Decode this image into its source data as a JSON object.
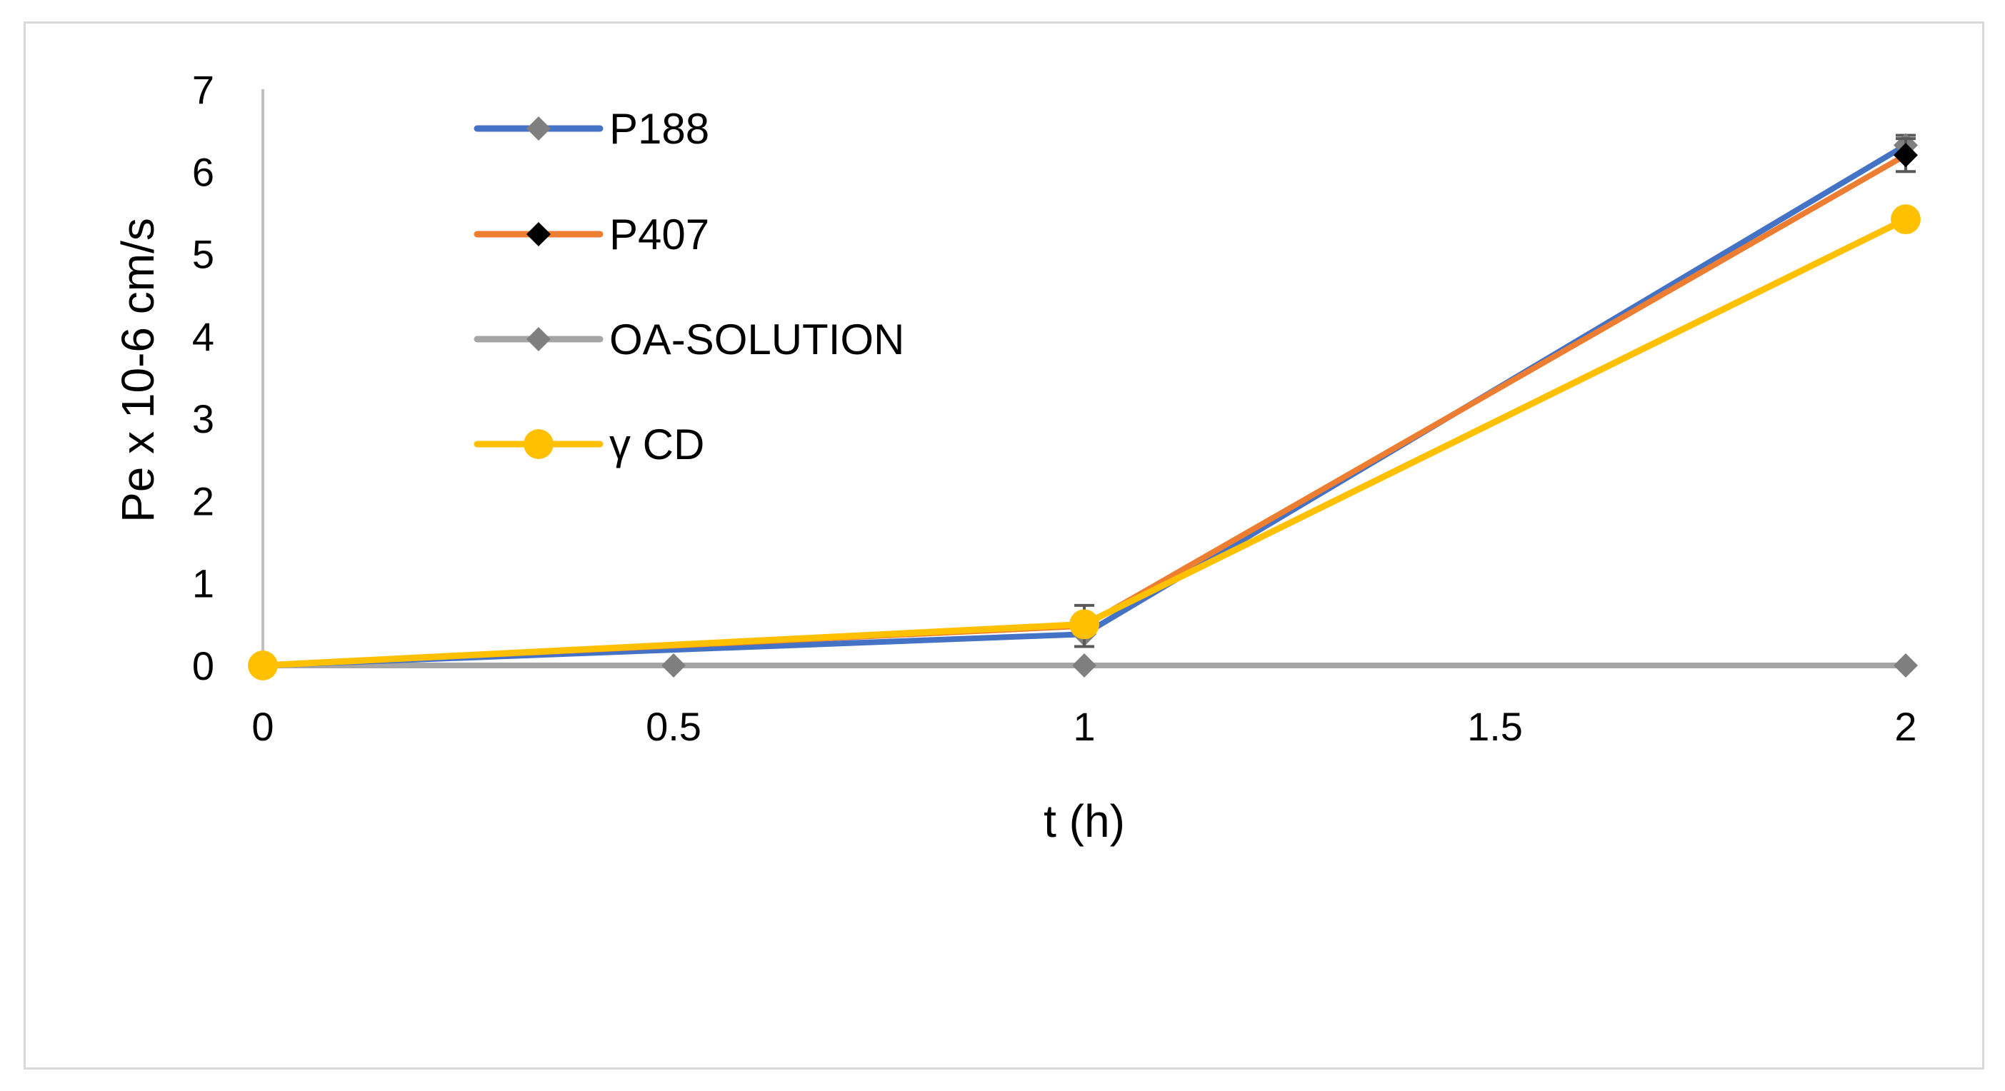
{
  "chart_data": {
    "type": "line",
    "title": "",
    "xlabel": "t (h)",
    "ylabel": "Pe x 10-6 cm/s",
    "xlim": [
      0,
      2
    ],
    "ylim": [
      0,
      7
    ],
    "x_ticks": [
      "0",
      "0.5",
      "1",
      "1.5",
      "2"
    ],
    "y_ticks": [
      "0",
      "1",
      "2",
      "3",
      "4",
      "5",
      "6",
      "7"
    ],
    "grid": false,
    "legend_position": "top-left",
    "series": [
      {
        "name": "P188",
        "color": "#4472c4",
        "marker": "diamond",
        "marker_color": "#7f7f7f",
        "x": [
          0,
          1,
          2
        ],
        "y": [
          0,
          0.38,
          6.32
        ],
        "error": [
          0,
          0,
          0.12
        ]
      },
      {
        "name": "P407",
        "color": "#ed7d31",
        "marker": "diamond",
        "marker_color": "#000000",
        "x": [
          0,
          1,
          2
        ],
        "y": [
          0,
          0.48,
          6.2
        ],
        "error": [
          0,
          0.25,
          0.2
        ]
      },
      {
        "name": "OA-SOLUTION",
        "color": "#a5a5a5",
        "marker": "diamond",
        "marker_color": "#7f7f7f",
        "x": [
          0,
          0.5,
          1,
          2
        ],
        "y": [
          0,
          0,
          0,
          0
        ],
        "error": [
          0,
          0,
          0,
          0
        ]
      },
      {
        "name": "γ CD",
        "color": "#ffc000",
        "marker": "circle",
        "marker_color": "#ffc000",
        "x": [
          0,
          1,
          2
        ],
        "y": [
          0,
          0.5,
          5.42
        ],
        "error": [
          0,
          0,
          0
        ]
      }
    ]
  }
}
